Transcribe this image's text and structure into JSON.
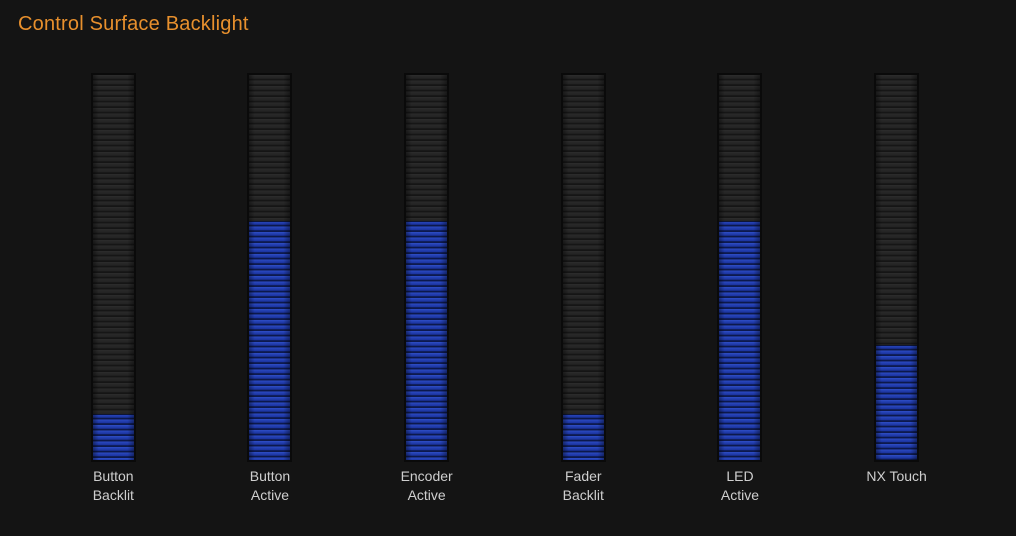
{
  "page": {
    "title": "Control Surface Backlight"
  },
  "colors": {
    "background": "#141414",
    "title_orange": "#E8902D",
    "track_gray": "#232323",
    "fill_blue": "#1E38A8",
    "label_gray": "#CFCFCF",
    "track_border": "#0A0A0A"
  },
  "sliders": [
    {
      "id": "button-backlit",
      "label_line1": "Button",
      "label_line2": "Backlit",
      "value_percent": 12
    },
    {
      "id": "button-active",
      "label_line1": "Button",
      "label_line2": "Active",
      "value_percent": 62
    },
    {
      "id": "encoder-active",
      "label_line1": "Encoder",
      "label_line2": "Active",
      "value_percent": 62
    },
    {
      "id": "fader-backlit",
      "label_line1": "Fader",
      "label_line2": "Backlit",
      "value_percent": 12
    },
    {
      "id": "led-active",
      "label_line1": "LED",
      "label_line2": "Active",
      "value_percent": 62
    },
    {
      "id": "nx-touch",
      "label_line1": "NX Touch",
      "label_line2": "",
      "value_percent": 30
    }
  ]
}
